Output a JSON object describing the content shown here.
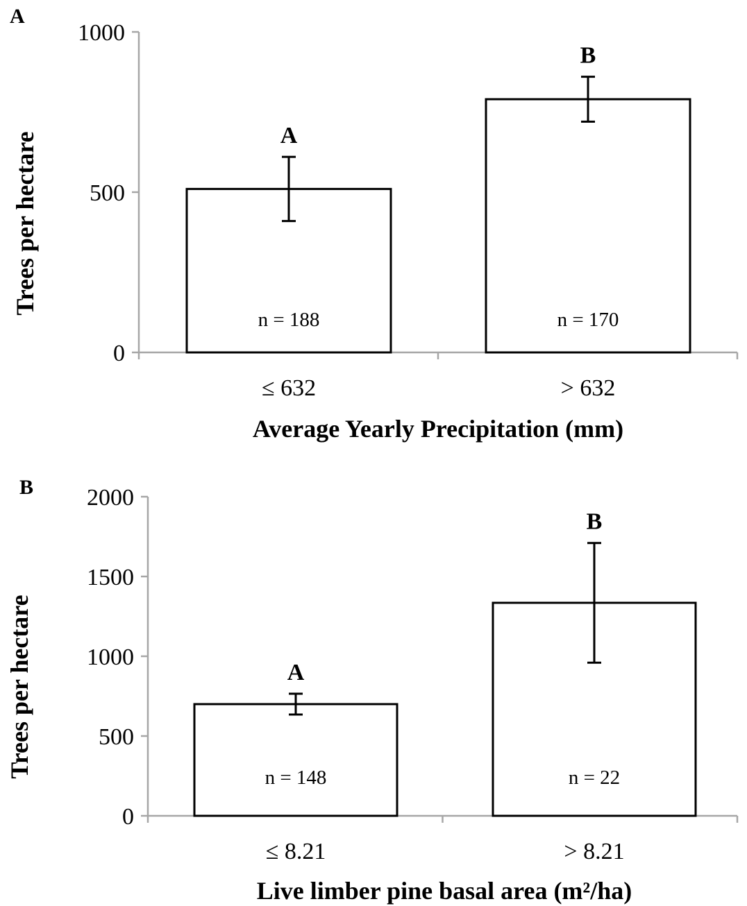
{
  "chart_data": [
    {
      "type": "bar",
      "panel_label": "A",
      "categories": [
        "≤ 632",
        "> 632"
      ],
      "values": [
        510,
        790
      ],
      "error": [
        100,
        70
      ],
      "significance_labels": [
        "A",
        "B"
      ],
      "n_labels": [
        "n = 188",
        "n = 170"
      ],
      "xlabel": "Average Yearly Precipitation (mm)",
      "ylabel": "Trees per hectare",
      "ylim": [
        0,
        1000
      ],
      "yticks": [
        "0",
        "500",
        "1000"
      ],
      "grid": false
    },
    {
      "type": "bar",
      "panel_label": "B",
      "categories": [
        "≤ 8.21",
        "> 8.21"
      ],
      "values": [
        700,
        1335
      ],
      "error": [
        65,
        375
      ],
      "significance_labels": [
        "A",
        "B"
      ],
      "n_labels": [
        "n = 148",
        "n = 22"
      ],
      "xlabel": "Live limber pine basal area (m²/ha)",
      "ylabel": "Trees per hectare",
      "ylim": [
        0,
        2000
      ],
      "yticks": [
        "0",
        "500",
        "1000",
        "1500",
        "2000"
      ],
      "grid": false
    }
  ]
}
